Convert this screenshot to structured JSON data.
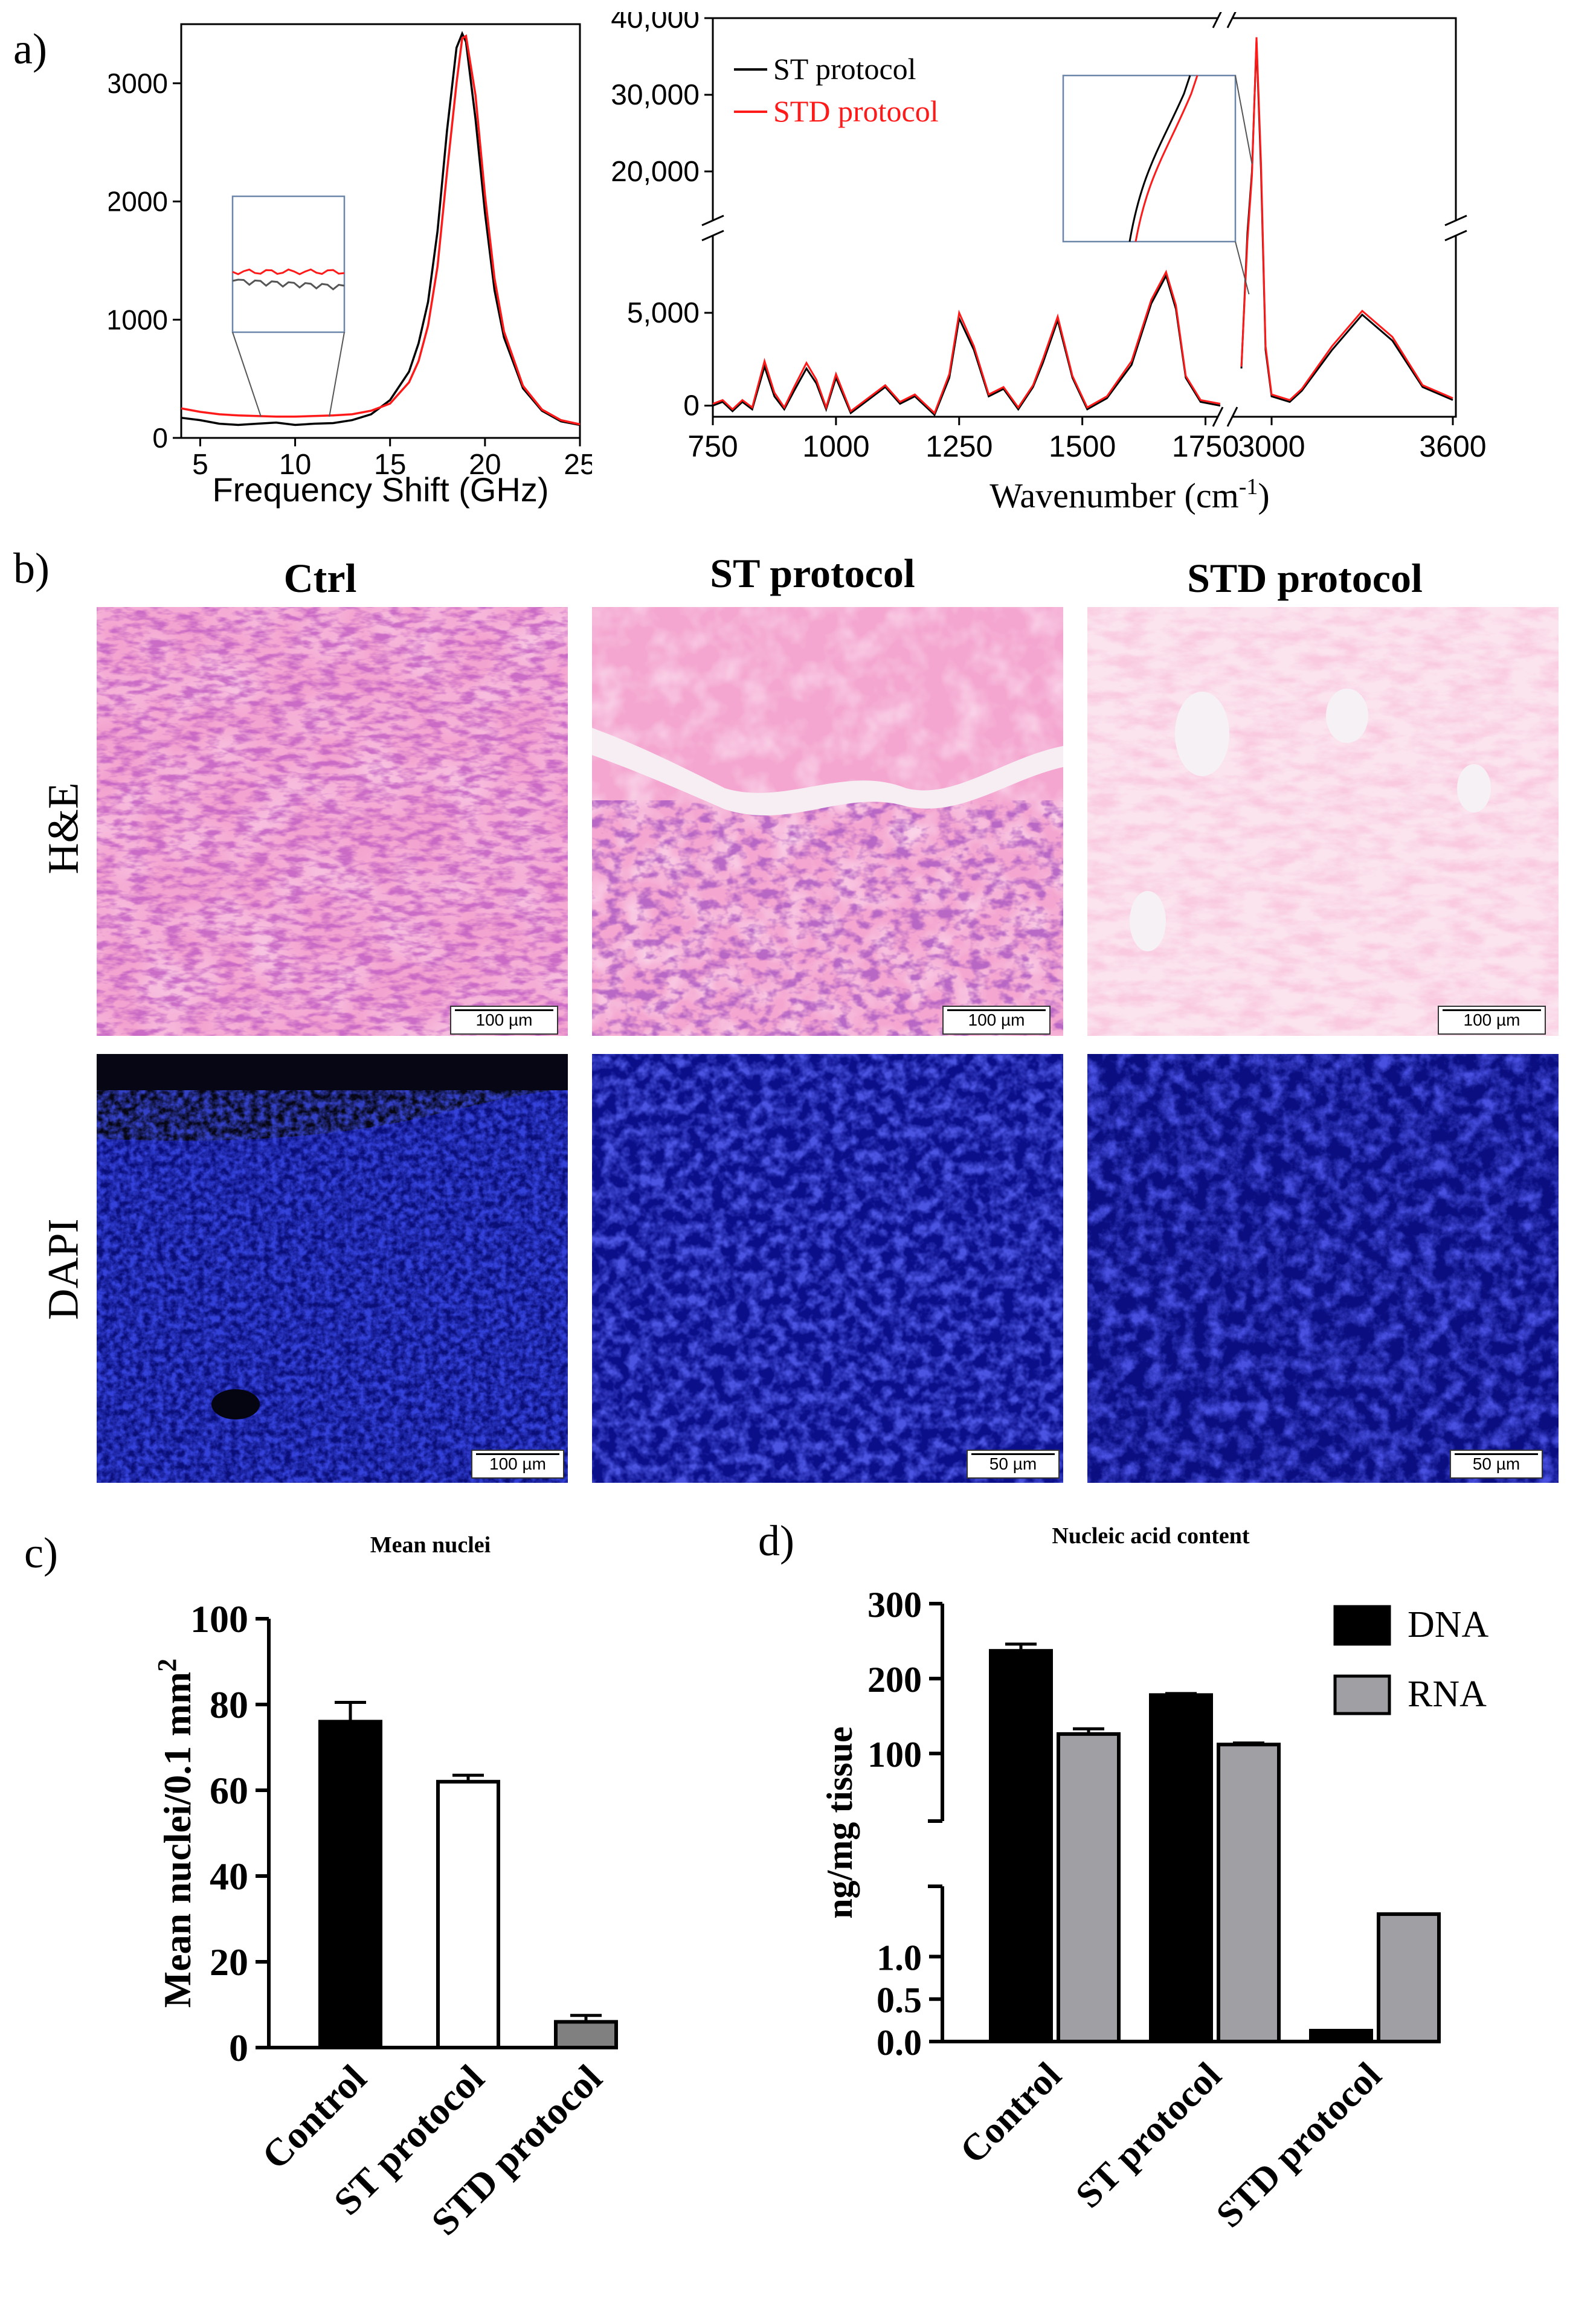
{
  "panels": {
    "a": "a)",
    "b": "b)",
    "c": "c)",
    "d": "d)"
  },
  "chart_data": [
    {
      "id": "brillouin",
      "type": "line",
      "title": "",
      "xlabel": "Frequency Shift (GHz)",
      "ylabel": "",
      "xlim": [
        4,
        25
      ],
      "ylim": [
        0,
        3500
      ],
      "xticks": [
        "5",
        "10",
        "15",
        "20",
        "25"
      ],
      "yticks": [
        "0",
        "1000",
        "2000",
        "3000"
      ],
      "series": [
        {
          "name": "ST protocol",
          "color": "#000000",
          "x": [
            4,
            5,
            6,
            7,
            8,
            9,
            10,
            11,
            12,
            13,
            14,
            15,
            16,
            16.5,
            17,
            17.5,
            18,
            18.5,
            18.8,
            19,
            19.5,
            20,
            20.5,
            21,
            22,
            23,
            24,
            25
          ],
          "y": [
            170,
            150,
            120,
            110,
            120,
            130,
            110,
            120,
            125,
            150,
            200,
            320,
            560,
            800,
            1150,
            1750,
            2600,
            3300,
            3420,
            3350,
            2700,
            1900,
            1250,
            850,
            420,
            230,
            140,
            110
          ]
        },
        {
          "name": "STD protocol",
          "color": "#ff1a1a",
          "x": [
            4,
            5,
            6,
            7,
            8,
            9,
            10,
            11,
            12,
            13,
            14,
            15,
            16,
            16.5,
            17,
            17.5,
            18,
            18.5,
            18.8,
            19,
            19.5,
            20,
            20.5,
            21,
            22,
            23,
            24,
            25
          ],
          "y": [
            250,
            220,
            200,
            190,
            185,
            180,
            180,
            185,
            190,
            200,
            230,
            290,
            470,
            650,
            950,
            1450,
            2250,
            3000,
            3380,
            3400,
            2900,
            2050,
            1350,
            900,
            440,
            240,
            150,
            115
          ]
        }
      ]
    },
    {
      "id": "raman",
      "type": "line",
      "title": "",
      "xlabel": "Wavenumber (cm",
      "xlabel_sup": "-1",
      "xlabel_end": ")",
      "ylabel": "",
      "xticks": [
        "750",
        "1000",
        "1250",
        "1500",
        "1750",
        "3000",
        "3600"
      ],
      "yticks_low": [
        "0",
        "5,000"
      ],
      "yticks_high": [
        "20,000",
        "30,000",
        "40,000"
      ],
      "legend": [
        "ST protocol",
        "STD protocol"
      ],
      "series": [
        {
          "name": "ST protocol",
          "color": "#000000",
          "x": [
            750,
            770,
            790,
            810,
            830,
            855,
            875,
            895,
            915,
            940,
            960,
            980,
            1000,
            1030,
            1060,
            1100,
            1130,
            1160,
            1200,
            1230,
            1250,
            1280,
            1310,
            1340,
            1370,
            1400,
            1420,
            1450,
            1480,
            1510,
            1550,
            1600,
            1640,
            1670,
            1690,
            1710,
            1740,
            1780,
            2900,
            2920,
            2935,
            2950,
            2965,
            2980,
            3000,
            3060,
            3100,
            3200,
            3300,
            3400,
            3500,
            3600
          ],
          "y": [
            0,
            200,
            -300,
            200,
            -200,
            2100,
            500,
            -200,
            800,
            2000,
            1200,
            -200,
            1500,
            -400,
            200,
            1000,
            100,
            500,
            -500,
            1500,
            4700,
            3000,
            500,
            900,
            -200,
            1000,
            2300,
            4600,
            1500,
            -200,
            400,
            2200,
            5500,
            7000,
            5200,
            1500,
            200,
            0,
            2000,
            12000,
            20000,
            37000,
            20000,
            3000,
            500,
            200,
            800,
            3000,
            4900,
            3500,
            1000,
            300
          ]
        },
        {
          "name": "STD protocol",
          "color": "#ff1a1a",
          "x": [
            750,
            770,
            790,
            810,
            830,
            855,
            875,
            895,
            915,
            940,
            960,
            980,
            1000,
            1030,
            1060,
            1100,
            1130,
            1160,
            1200,
            1230,
            1250,
            1280,
            1310,
            1340,
            1370,
            1400,
            1420,
            1450,
            1480,
            1510,
            1550,
            1600,
            1640,
            1670,
            1690,
            1710,
            1740,
            1780,
            2900,
            2920,
            2935,
            2950,
            2965,
            2980,
            3000,
            3060,
            3100,
            3200,
            3300,
            3400,
            3500,
            3600
          ],
          "y": [
            100,
            300,
            -200,
            300,
            -100,
            2400,
            700,
            -100,
            1000,
            2300,
            1400,
            -100,
            1700,
            -300,
            300,
            1100,
            200,
            600,
            -400,
            1700,
            5000,
            3200,
            600,
            1000,
            -100,
            1100,
            2500,
            4800,
            1600,
            -100,
            500,
            2400,
            5700,
            7200,
            5400,
            1600,
            300,
            100,
            2100,
            11000,
            19500,
            37500,
            21000,
            3200,
            600,
            300,
            900,
            3200,
            5100,
            3700,
            1100,
            400
          ]
        }
      ]
    },
    {
      "id": "nuclei",
      "type": "bar",
      "title": "Mean nuclei",
      "ylabel": "Mean nuclei/0.1 mm",
      "ylabel_sup": "2",
      "ylim": [
        0,
        100
      ],
      "yticks": [
        "0",
        "20",
        "40",
        "60",
        "80",
        "100"
      ],
      "categories": [
        "Control",
        "ST protocol",
        "STD protocol"
      ],
      "values": [
        76,
        62,
        6
      ],
      "errors": [
        4.5,
        1.5,
        1.5
      ],
      "colors": [
        "#000000",
        "#ffffff",
        "#808080"
      ]
    },
    {
      "id": "nucleic",
      "type": "bar",
      "title": "Nucleic acid content",
      "ylabel": "ng/mg tissue",
      "yticks_low": [
        "0.0",
        "0.5",
        "1.0"
      ],
      "yticks_high": [
        "100",
        "200",
        "300"
      ],
      "categories": [
        "Control",
        "ST protocol",
        "STD protocol"
      ],
      "series": [
        {
          "name": "DNA",
          "color": "#000000",
          "values": [
            237,
            178,
            0.15
          ],
          "errors": [
            9,
            2,
            0.02
          ]
        },
        {
          "name": "RNA",
          "color": "#a0a0a4",
          "values": [
            126,
            112,
            1.5
          ],
          "errors": [
            7,
            2,
            0
          ]
        }
      ]
    }
  ],
  "micrographs": {
    "columns": [
      "Ctrl",
      "ST protocol",
      "STD protocol"
    ],
    "rows": [
      "H&E",
      "DAPI"
    ],
    "scalebars": {
      "he_ctrl": "100 µm",
      "he_st": "100 µm",
      "he_std": "100 µm",
      "dapi_ctrl": "100 µm",
      "dapi_st": "50 µm",
      "dapi_std": "50 µm"
    }
  }
}
